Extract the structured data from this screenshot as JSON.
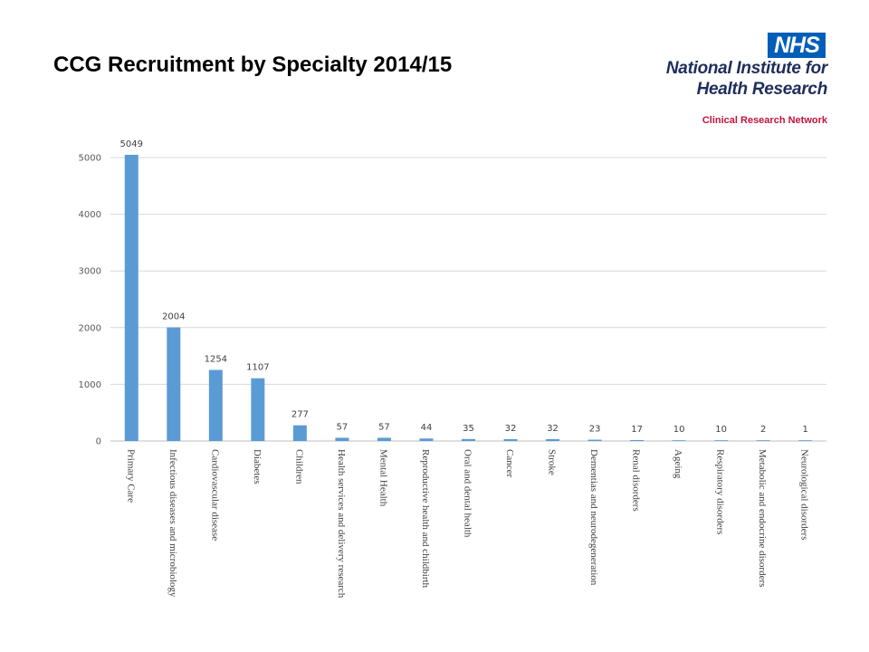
{
  "title": "CCG Recruitment by Specialty 2014/15",
  "logo": {
    "nhs": "NHS",
    "line1": "National Institute for",
    "line2": "Health Research",
    "network": "Clinical Research Network",
    "colors": {
      "nhs_blue": "#005eb8",
      "navy": "#1f2d5c",
      "red": "#c3133e"
    }
  },
  "chart_data": {
    "type": "bar",
    "categories": [
      "Primary Care",
      "Infectious diseases and microbiology",
      "Cardiovascular disease",
      "Diabetes",
      "Children",
      "Health services and delivery research",
      "Mental Health",
      "Reproductive health and childbirth",
      "Oral and dental health",
      "Cancer",
      "Stroke",
      "Dementias and neurodegeneration",
      "Renal disorders",
      "Ageing",
      "Respiratory disorders",
      "Metabolic and endocrine disorders",
      "Neurological disorders"
    ],
    "values": [
      5049,
      2004,
      1254,
      1107,
      277,
      57,
      57,
      44,
      35,
      32,
      32,
      23,
      17,
      10,
      10,
      2,
      1
    ],
    "yticks": [
      0,
      1000,
      2000,
      3000,
      4000,
      5000
    ],
    "ylim": [
      0,
      5000
    ],
    "grid": true,
    "bar_color": "#5b9bd5",
    "title": "",
    "xlabel": "",
    "ylabel": ""
  }
}
